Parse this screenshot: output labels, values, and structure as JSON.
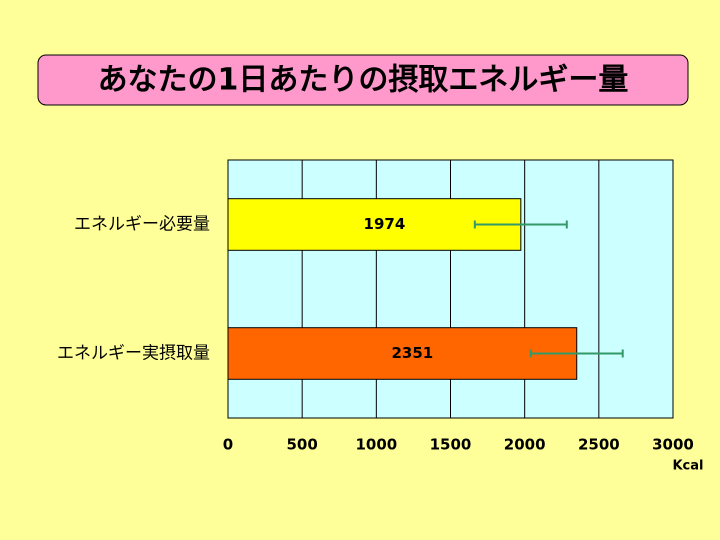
{
  "chart_data": {
    "type": "bar",
    "orientation": "horizontal",
    "title": "あなたの1日あたりの摂取エネルギー量",
    "categories": [
      "エネルギー必要量",
      "エネルギー実摂取量"
    ],
    "values": [
      1974,
      2351
    ],
    "errors": [
      310,
      310
    ],
    "colors": [
      "#ffff00",
      "#ff6600"
    ],
    "error_color": "#339966",
    "x_label": "Kcal",
    "xlim": [
      0,
      3000
    ],
    "xticks": [
      0,
      500,
      1000,
      1500,
      2000,
      2500,
      3000
    ],
    "grid": true
  }
}
